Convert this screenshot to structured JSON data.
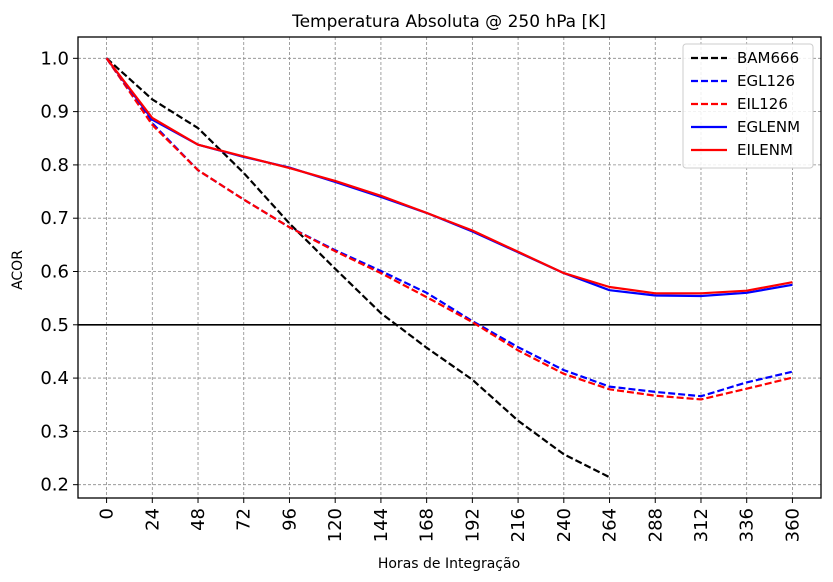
{
  "chart_data": {
    "type": "line",
    "title": "Temperatura Absoluta @ 250 hPa [K]",
    "xlabel": "Horas de Integração",
    "ylabel": "ACOR",
    "x": [
      0,
      24,
      48,
      72,
      96,
      120,
      144,
      168,
      192,
      216,
      240,
      264,
      288,
      312,
      336,
      360
    ],
    "x_tick_labels": [
      "0",
      "24",
      "48",
      "72",
      "96",
      "120",
      "144",
      "168",
      "192",
      "216",
      "240",
      "264",
      "288",
      "312",
      "336",
      "360"
    ],
    "y_ticks": [
      0.2,
      0.3,
      0.4,
      0.5,
      0.6,
      0.7,
      0.8,
      0.9,
      1.0
    ],
    "y_tick_labels": [
      "0.2",
      "0.3",
      "0.4",
      "0.5",
      "0.6",
      "0.7",
      "0.8",
      "0.9",
      "1.0"
    ],
    "xlim": [
      -15,
      375
    ],
    "ylim": [
      0.175,
      1.04
    ],
    "grid": true,
    "reference_line": {
      "y": 0.5,
      "color": "#000000"
    },
    "legend_position": "top-right",
    "series": [
      {
        "name": "BAM666",
        "color": "#000000",
        "style": "dashed",
        "values": [
          1.0,
          0.923,
          0.869,
          0.785,
          0.69,
          0.605,
          0.522,
          0.457,
          0.397,
          0.32,
          0.257,
          0.214,
          null,
          null,
          null,
          null
        ]
      },
      {
        "name": "EGL126",
        "color": "#0000ff",
        "style": "dashed",
        "values": [
          1.0,
          0.878,
          0.79,
          0.735,
          0.683,
          0.64,
          0.601,
          0.56,
          0.507,
          0.458,
          0.415,
          0.384,
          0.374,
          0.366,
          0.392,
          0.412
        ]
      },
      {
        "name": "EIL126",
        "color": "#ff0000",
        "style": "dashed",
        "values": [
          1.0,
          0.875,
          0.79,
          0.735,
          0.683,
          0.638,
          0.597,
          0.552,
          0.505,
          0.452,
          0.408,
          0.379,
          0.367,
          0.36,
          0.38,
          0.401
        ]
      },
      {
        "name": "EGLENM",
        "color": "#0000ff",
        "style": "solid",
        "values": [
          1.0,
          0.885,
          0.838,
          0.815,
          0.795,
          0.768,
          0.74,
          0.71,
          0.675,
          0.636,
          0.597,
          0.565,
          0.555,
          0.554,
          0.56,
          0.575
        ]
      },
      {
        "name": "EILENM",
        "color": "#ff0000",
        "style": "solid",
        "values": [
          1.0,
          0.888,
          0.838,
          0.816,
          0.794,
          0.77,
          0.742,
          0.71,
          0.677,
          0.637,
          0.597,
          0.571,
          0.559,
          0.559,
          0.564,
          0.58
        ]
      }
    ]
  }
}
